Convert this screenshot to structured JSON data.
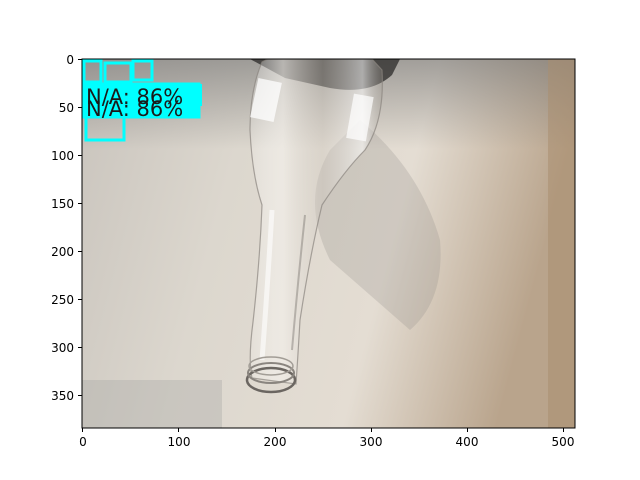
{
  "axes": {
    "x_ticks": [
      "0",
      "100",
      "200",
      "300",
      "400",
      "500"
    ],
    "y_ticks": [
      "0",
      "50",
      "100",
      "150",
      "200",
      "250",
      "300",
      "350"
    ]
  },
  "detections": [
    {
      "label": "N/A: 86%"
    },
    {
      "label": "N/A: 86%"
    }
  ],
  "colors": {
    "box": "#00ffff",
    "label_text": "#1a1a1a",
    "background": "#ffffff",
    "spine": "#000000"
  }
}
